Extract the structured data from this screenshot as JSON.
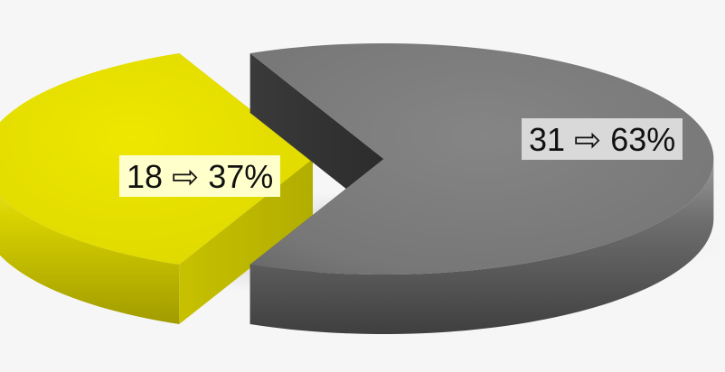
{
  "chart_data": {
    "type": "pie",
    "style": "3d-exploded",
    "slices": [
      {
        "value": 18,
        "percent": "37%",
        "label": "18 ⇨ 37%",
        "color": "#e3de00",
        "label_bg": "#ffffcc"
      },
      {
        "value": 31,
        "percent": "63%",
        "label": "31 ⇨ 63%",
        "color": "#7a7a7a",
        "label_bg": "#d9d9d9"
      }
    ],
    "legend": "none",
    "title": ""
  }
}
